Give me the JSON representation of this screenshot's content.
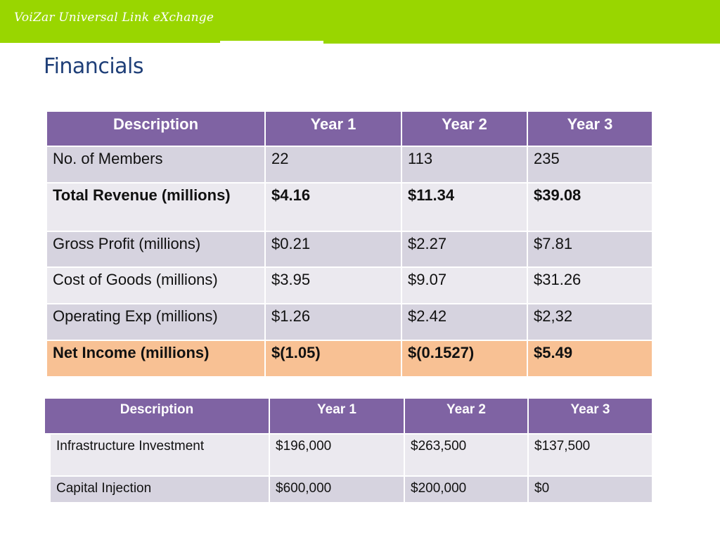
{
  "header": {
    "brand": "VoiZar Universal Link eXchange",
    "accent_color": "#99d600"
  },
  "page": {
    "title": "Financials",
    "title_color": "#1f3f78"
  },
  "table1": {
    "header_color": "#7f63a3",
    "columns": [
      "Description",
      "Year 1",
      "Year 2",
      "Year 3"
    ],
    "rows": [
      [
        "No. of Members",
        "22",
        "113",
        "235"
      ],
      [
        "Total Revenue (millions)",
        "$4.16",
        "$11.34",
        "$39.08"
      ],
      [
        "Gross Profit (millions)",
        "$0.21",
        "$2.27",
        "$7.81"
      ],
      [
        "Cost of Goods (millions)",
        "$3.95",
        "$9.07",
        "$31.26"
      ],
      [
        "Operating Exp (millions)",
        "$1.26",
        "$2.42",
        "$2,32"
      ],
      [
        "Net Income (millions)",
        "$(1.05)",
        "$(0.1527)",
        "$5.49"
      ]
    ],
    "highlight_color": "#f8c194",
    "negative_color": "#e8160f"
  },
  "table2": {
    "columns": [
      "Description",
      "Year 1",
      "Year 2",
      "Year 3"
    ],
    "rows": [
      [
        "Infrastructure Investment",
        "$196,000",
        "$263,500",
        "$137,500"
      ],
      [
        "Capital Injection",
        "$600,000",
        "$200,000",
        "$0"
      ]
    ]
  }
}
